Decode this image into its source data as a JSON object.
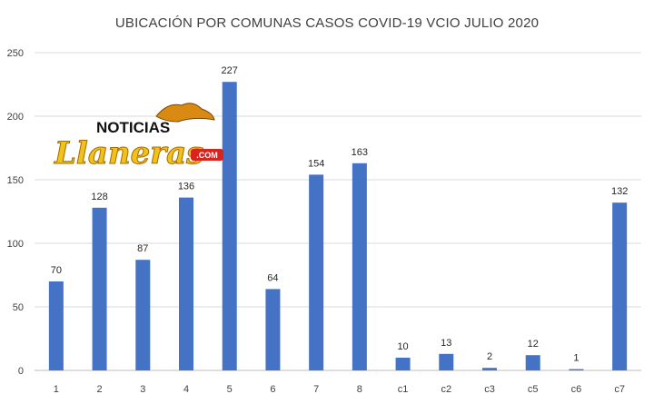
{
  "chart_data": {
    "type": "bar",
    "title": "UBICACIÓN POR COMUNAS CASOS COVID-19 VCIO JULIO 2020",
    "xlabel": "",
    "ylabel": "",
    "categories": [
      "1",
      "2",
      "3",
      "4",
      "5",
      "6",
      "7",
      "8",
      "c1",
      "c2",
      "c3",
      "c5",
      "c6",
      "c7"
    ],
    "values": [
      70,
      128,
      87,
      136,
      227,
      64,
      154,
      163,
      10,
      13,
      2,
      12,
      1,
      132
    ],
    "ylim": [
      0,
      250
    ],
    "yticks": [
      "0",
      "50",
      "100",
      "150",
      "200",
      "250"
    ],
    "grid": true,
    "legend": "none",
    "bar_color": "#4472c4"
  },
  "watermark": {
    "line1": "NOTICIAS",
    "line2": "Llaneras",
    "suffix": ".COM",
    "primary_color": "#f0c21a",
    "accent_color": "#d9231d"
  }
}
